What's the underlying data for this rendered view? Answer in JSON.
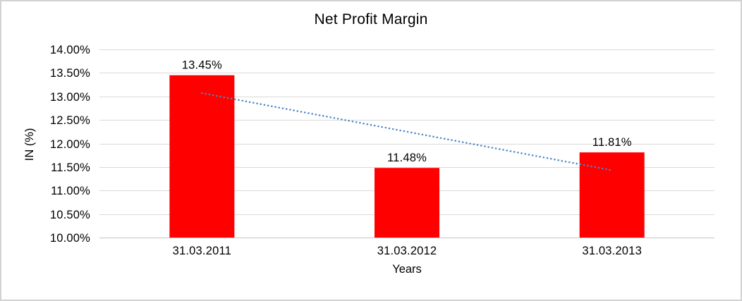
{
  "chart_data": {
    "type": "bar",
    "title": "Net Profit Margin",
    "xlabel": "Years",
    "ylabel": "IN (%)",
    "categories": [
      "31.03.2011",
      "31.03.2012",
      "31.03.2013"
    ],
    "values": [
      13.45,
      11.48,
      11.81
    ],
    "data_labels": [
      "13.45%",
      "11.48%",
      "11.81%"
    ],
    "y_tick_labels": [
      "14.00%",
      "13.50%",
      "13.00%",
      "12.50%",
      "12.00%",
      "11.50%",
      "11.00%",
      "10.50%",
      "10.00%"
    ],
    "y_tick_values": [
      14,
      13.5,
      13,
      12.5,
      12,
      11.5,
      11,
      10.5,
      10
    ],
    "ylim": [
      10,
      14
    ],
    "grid": true,
    "legend_position": "none",
    "bar_color": "#ff0000",
    "trendline": {
      "style": "dotted",
      "color": "#4a86c8",
      "start_value": 13.07,
      "end_value": 11.43
    },
    "colors": {
      "gridline": "#d9d9d9",
      "axis_line": "#c6c6c6",
      "text": "#000000",
      "background": "#ffffff",
      "frame_border": "#d2d2d2"
    }
  }
}
